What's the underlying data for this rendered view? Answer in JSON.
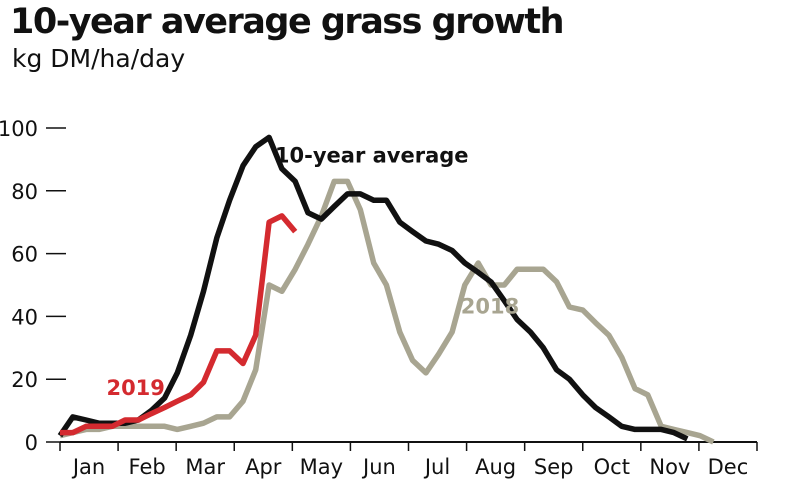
{
  "chart_data": {
    "type": "line",
    "title": "10-year average grass growth",
    "subtitle": "kg DM/ha/day",
    "xlabel": "",
    "ylabel": "",
    "ylim": [
      0,
      100
    ],
    "xlim": [
      0,
      12
    ],
    "yticks": [
      0,
      20,
      40,
      60,
      80,
      100
    ],
    "categories": [
      "Jan",
      "Feb",
      "Mar",
      "Apr",
      "May",
      "Jun",
      "Jul",
      "Aug",
      "Sep",
      "Oct",
      "Nov",
      "Dec"
    ],
    "grid": false,
    "series": [
      {
        "name": "10-year average",
        "color": "#111111",
        "x": [
          0,
          0.22,
          0.45,
          0.67,
          0.9,
          1.12,
          1.35,
          1.57,
          1.8,
          2.02,
          2.25,
          2.47,
          2.7,
          2.92,
          3.15,
          3.37,
          3.6,
          3.82,
          4.05,
          4.27,
          4.5,
          4.72,
          4.95,
          5.17,
          5.4,
          5.62,
          5.85,
          6.07,
          6.3,
          6.52,
          6.75,
          6.97,
          7.2,
          7.42,
          7.65,
          7.87,
          8.1,
          8.32,
          8.55,
          8.77,
          9.0,
          9.22,
          9.45,
          9.67,
          9.9,
          10.12,
          10.35,
          10.57,
          10.8
        ],
        "values": [
          2,
          8,
          7,
          6,
          6,
          6,
          7,
          10,
          14,
          22,
          34,
          48,
          65,
          77,
          88,
          94,
          97,
          87,
          83,
          73,
          71,
          75,
          79,
          79,
          77,
          77,
          70,
          67,
          64,
          63,
          61,
          57,
          54,
          51,
          45,
          39,
          35,
          30,
          23,
          20,
          15,
          11,
          8,
          5,
          4,
          4,
          4,
          3,
          1
        ],
        "label_x": 3.7,
        "label_y": 89
      },
      {
        "name": "2019",
        "color": "#d42a2f",
        "x": [
          0,
          0.22,
          0.45,
          0.67,
          0.9,
          1.12,
          1.35,
          1.57,
          1.8,
          2.02,
          2.25,
          2.47,
          2.7,
          2.92,
          3.15,
          3.37,
          3.6,
          3.82,
          4.05
        ],
        "values": [
          3,
          3,
          5,
          5,
          5,
          7,
          7,
          9,
          11,
          13,
          15,
          19,
          29,
          29,
          25,
          34,
          70,
          72,
          67
        ],
        "label_x": 0.8,
        "label_y": 15
      },
      {
        "name": "2018",
        "color": "#a8a591",
        "x": [
          0,
          0.22,
          0.45,
          0.67,
          0.9,
          1.12,
          1.35,
          1.57,
          1.8,
          2.02,
          2.25,
          2.47,
          2.7,
          2.92,
          3.15,
          3.37,
          3.6,
          3.82,
          4.05,
          4.27,
          4.5,
          4.72,
          4.95,
          5.17,
          5.4,
          5.62,
          5.85,
          6.07,
          6.3,
          6.52,
          6.75,
          6.97,
          7.2,
          7.42,
          7.65,
          7.87,
          8.1,
          8.32,
          8.55,
          8.77,
          9.0,
          9.22,
          9.45,
          9.67,
          9.9,
          10.12,
          10.35,
          10.57,
          10.8,
          11.02,
          11.25
        ],
        "values": [
          2,
          3,
          4,
          4,
          5,
          5,
          5,
          5,
          5,
          4,
          5,
          6,
          8,
          8,
          13,
          23,
          50,
          48,
          55,
          63,
          72,
          83,
          83,
          74,
          57,
          50,
          35,
          26,
          22,
          28,
          35,
          50,
          57,
          50,
          50,
          55,
          55,
          55,
          51,
          43,
          42,
          38,
          34,
          27,
          17,
          15,
          5,
          4,
          3,
          2,
          0
        ],
        "label_x": 6.9,
        "label_y": 41
      }
    ]
  }
}
